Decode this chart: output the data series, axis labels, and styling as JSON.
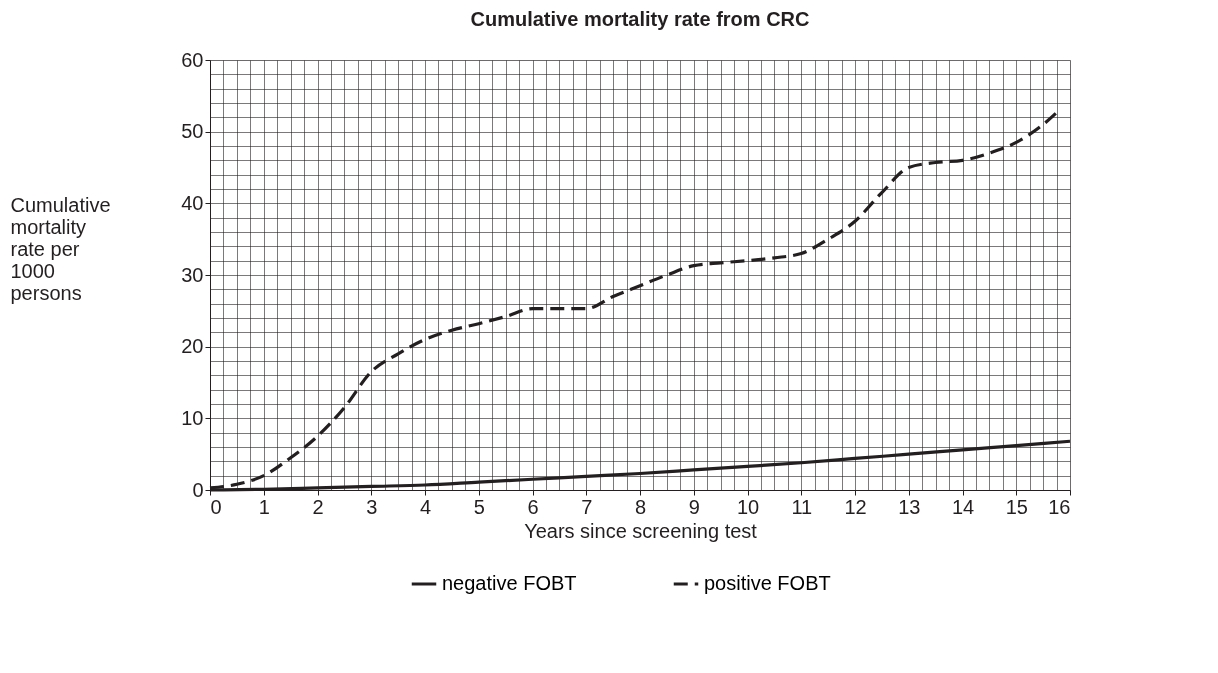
{
  "chart_data": {
    "type": "line",
    "title": "Cumulative mortality rate from CRC",
    "xlabel": "Years since screening test",
    "ylabel": "Cumulative mortality rate per 1000 persons",
    "xlim": [
      0,
      16
    ],
    "ylim": [
      0,
      60
    ],
    "xticks": [
      0,
      1,
      2,
      3,
      4,
      5,
      6,
      7,
      8,
      9,
      10,
      11,
      12,
      13,
      14,
      15,
      16
    ],
    "yticks": [
      0,
      10,
      20,
      30,
      40,
      50,
      60
    ],
    "grid": true,
    "legend": "bottom",
    "marker": "none",
    "series": [
      {
        "name": "negative FOBT",
        "color": "#231f20",
        "line_style": "solid",
        "x": [
          0,
          1,
          2,
          3,
          4,
          5,
          6,
          7,
          8,
          9,
          10,
          11,
          12,
          13,
          14,
          15,
          16
        ],
        "values": [
          0,
          0.1,
          0.3,
          0.5,
          0.7,
          1.1,
          1.5,
          1.9,
          2.3,
          2.8,
          3.3,
          3.8,
          4.4,
          5,
          5.6,
          6.2,
          6.8
        ]
      },
      {
        "name": "positive FOBT",
        "color": "#231f20",
        "line_style": "dashed",
        "x": [
          0,
          0.5,
          1,
          1.5,
          2,
          2.5,
          3,
          3.5,
          4,
          4.5,
          5,
          5.5,
          6,
          6.5,
          7,
          7.5,
          8,
          8.5,
          9,
          9.5,
          10,
          10.5,
          11,
          11.5,
          12,
          12.5,
          13,
          13.5,
          14,
          14.5,
          15,
          15.5,
          15.8
        ],
        "values": [
          0.3,
          0.8,
          2,
          4.5,
          7.5,
          11.5,
          16.5,
          19,
          21,
          22.3,
          23.2,
          24.2,
          25.3,
          25.3,
          25.3,
          27,
          28.5,
          30,
          31.3,
          31.7,
          32,
          32.4,
          33,
          35,
          37.5,
          41.5,
          45,
          45.7,
          46,
          47,
          48.5,
          51,
          53
        ]
      }
    ]
  }
}
